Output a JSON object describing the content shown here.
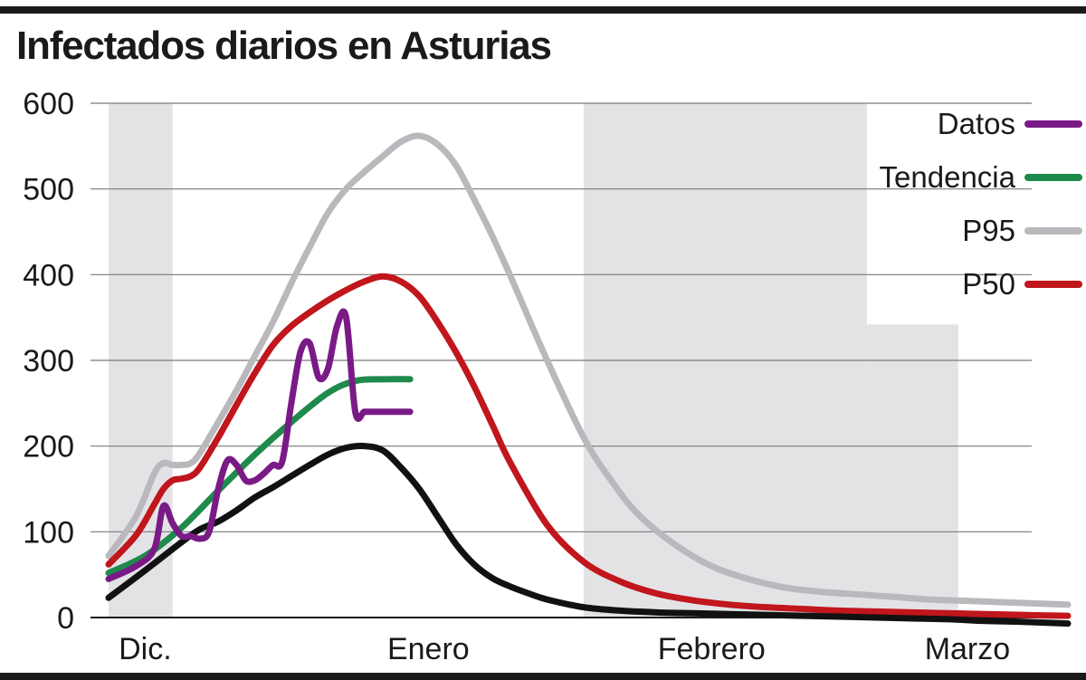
{
  "chart_data": {
    "type": "line",
    "title": "Infectados diarios en Asturias",
    "xlabel": "",
    "ylabel": "",
    "ylim": [
      0,
      600
    ],
    "xlim": [
      0,
      105
    ],
    "y_ticks": [
      0,
      100,
      200,
      300,
      400,
      500,
      600
    ],
    "x_ticks": [
      {
        "label": "Dic.",
        "value": 4
      },
      {
        "label": "Enero",
        "value": 35
      },
      {
        "label": "Febrero",
        "value": 66
      },
      {
        "label": "Marzo",
        "value": 94
      }
    ],
    "grid": true,
    "legend_position": "top-right",
    "shaded_bands": [
      {
        "x_from": 0,
        "x_to": 7,
        "y_to": 600
      },
      {
        "x_from": 52,
        "x_to": 83,
        "y_to": 600
      },
      {
        "x_from": 83,
        "x_to": 93,
        "y_to": 342
      }
    ],
    "series": [
      {
        "name": "Datos",
        "color": "#7a1a86",
        "x": [
          0,
          3,
          5,
          6,
          7,
          8,
          9,
          10,
          11,
          12,
          13,
          14,
          15,
          16,
          17,
          18,
          19,
          20,
          21,
          22,
          23,
          24,
          25,
          26,
          27,
          28,
          29,
          30,
          31,
          32,
          33
        ],
        "y": [
          45,
          60,
          80,
          130,
          110,
          95,
          95,
          92,
          100,
          150,
          183,
          178,
          160,
          160,
          168,
          178,
          182,
          250,
          310,
          320,
          280,
          290,
          340,
          350,
          240,
          240,
          240,
          240,
          240,
          240,
          240
        ]
      },
      {
        "name": "Tendencia",
        "color": "#1e8a4c",
        "x": [
          0,
          4,
          8,
          12,
          16,
          20,
          24,
          27,
          30,
          33
        ],
        "y": [
          52,
          72,
          105,
          148,
          190,
          228,
          262,
          276,
          278,
          278
        ]
      },
      {
        "name": "P95",
        "color": "#b9b9bd",
        "x": [
          0,
          3,
          5,
          6,
          7,
          8,
          9,
          10,
          12,
          14,
          16,
          18,
          20,
          22,
          24,
          26,
          28,
          30,
          32,
          34,
          36,
          38,
          40,
          42,
          44,
          48,
          52,
          55,
          58,
          62,
          66,
          70,
          74,
          78,
          82,
          86,
          90,
          95,
          100,
          105
        ],
        "y": [
          72,
          118,
          168,
          180,
          178,
          178,
          180,
          192,
          228,
          265,
          305,
          345,
          390,
          432,
          472,
          500,
          520,
          538,
          555,
          562,
          552,
          528,
          488,
          445,
          398,
          300,
          210,
          160,
          120,
          85,
          60,
          45,
          35,
          30,
          27,
          24,
          21,
          19,
          17,
          15
        ]
      },
      {
        "name": "P50",
        "color": "#c0161c",
        "x": [
          0,
          3,
          5,
          6,
          7,
          8,
          9,
          10,
          12,
          14,
          16,
          18,
          20,
          22,
          24,
          26,
          28,
          30,
          32,
          34,
          36,
          38,
          40,
          42,
          44,
          48,
          52,
          56,
          60,
          64,
          68,
          72,
          76,
          80,
          84,
          88,
          92,
          96,
          100,
          105
        ],
        "y": [
          62,
          96,
          132,
          150,
          160,
          162,
          165,
          175,
          210,
          248,
          285,
          318,
          340,
          356,
          370,
          382,
          392,
          398,
          392,
          375,
          345,
          310,
          270,
          225,
          180,
          108,
          65,
          42,
          28,
          20,
          15,
          12,
          10,
          8,
          7,
          6,
          5,
          4,
          3,
          2
        ]
      },
      {
        "name": "",
        "color": "#111111",
        "x": [
          0,
          4,
          8,
          10,
          12,
          14,
          16,
          18,
          20,
          22,
          24,
          26,
          28,
          30,
          32,
          34,
          36,
          38,
          40,
          42,
          44,
          46,
          48,
          52,
          56,
          60,
          64,
          68,
          72,
          76,
          80,
          84,
          88,
          92,
          96,
          100,
          105
        ],
        "y": [
          23,
          55,
          88,
          103,
          112,
          125,
          140,
          152,
          165,
          178,
          190,
          198,
          200,
          195,
          175,
          150,
          118,
          86,
          62,
          46,
          36,
          28,
          21,
          12,
          8,
          6,
          5,
          4,
          3,
          2,
          1,
          0,
          -1,
          -2,
          -4,
          -5,
          -7
        ]
      }
    ]
  }
}
